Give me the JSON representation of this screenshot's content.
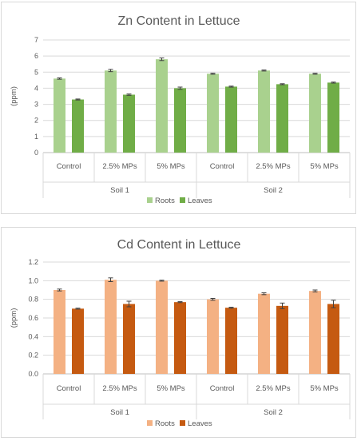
{
  "chart_data": [
    {
      "type": "bar",
      "title": "Zn Content in Lettuce",
      "ylabel": "(ppm)",
      "xlabel": "",
      "ylim": [
        0,
        7
      ],
      "yticks": [
        "0",
        "1",
        "2",
        "3",
        "4",
        "5",
        "6",
        "7"
      ],
      "categories": [
        "Control",
        "2.5% MPs",
        "5% MPs",
        "Control",
        "2.5% MPs",
        "5% MPs"
      ],
      "groups": [
        {
          "label": "Soil 1",
          "span": 3
        },
        {
          "label": "Soil 2",
          "span": 3
        }
      ],
      "series": [
        {
          "name": "Roots",
          "values": [
            4.6,
            5.1,
            5.8,
            4.9,
            5.1,
            4.9
          ],
          "errors": [
            0.04,
            0.07,
            0.08,
            0.03,
            0.03,
            0.03
          ],
          "color": "#a9d18e"
        },
        {
          "name": "Leaves",
          "values": [
            3.3,
            3.6,
            4.0,
            4.1,
            4.25,
            4.35
          ],
          "errors": [
            0.03,
            0.04,
            0.07,
            0.03,
            0.03,
            0.03
          ],
          "color": "#70ad47"
        }
      ],
      "grid": true,
      "legend": "bottom"
    },
    {
      "type": "bar",
      "title": "Cd Content in Lettuce",
      "ylabel": "(ppm)",
      "xlabel": "",
      "ylim": [
        0,
        1.2
      ],
      "yticks": [
        "0.0",
        "0.2",
        "0.4",
        "0.6",
        "0.8",
        "1.0",
        "1.2"
      ],
      "categories": [
        "Control",
        "2.5% MPs",
        "5% MPs",
        "Control",
        "2.5% MPs",
        "5% MPs"
      ],
      "groups": [
        {
          "label": "Soil 1",
          "span": 3
        },
        {
          "label": "Soil 2",
          "span": 3
        }
      ],
      "series": [
        {
          "name": "Roots",
          "values": [
            0.9,
            1.01,
            1.0,
            0.8,
            0.86,
            0.89
          ],
          "errors": [
            0.01,
            0.02,
            0.005,
            0.01,
            0.01,
            0.01
          ],
          "color": "#f4b183"
        },
        {
          "name": "Leaves",
          "values": [
            0.7,
            0.75,
            0.77,
            0.71,
            0.73,
            0.75
          ],
          "errors": [
            0.005,
            0.03,
            0.005,
            0.005,
            0.03,
            0.04
          ],
          "color": "#c55a11"
        }
      ],
      "grid": true,
      "legend": "bottom"
    }
  ]
}
